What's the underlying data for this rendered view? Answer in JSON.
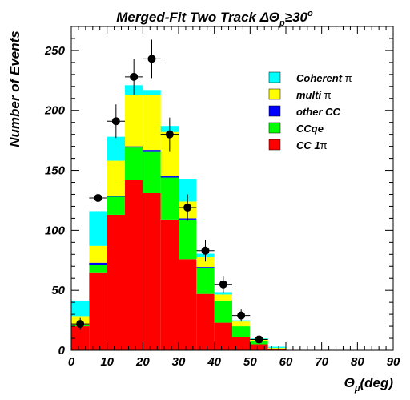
{
  "chart_data": {
    "type": "bar",
    "stacked": true,
    "title": "Merged-Fit Two Track ΔΘp≥30°",
    "title_parts": {
      "prefix": "Merged-Fit Two Track ΔΘ",
      "sub": "p",
      "rel": "≥30",
      "sup": "o"
    },
    "xlabel": "Θμ(deg)",
    "xlabel_parts": {
      "main": "Θ",
      "sub": "μ",
      "rest": "(deg)"
    },
    "ylabel": "Number of Events",
    "xlim": [
      0,
      90
    ],
    "ylim": [
      0,
      270
    ],
    "x_ticks": [
      0,
      10,
      20,
      30,
      40,
      50,
      60,
      70,
      80,
      90
    ],
    "y_ticks": [
      0,
      50,
      100,
      150,
      200,
      250
    ],
    "bin_edges": [
      0,
      5,
      10,
      15,
      20,
      25,
      30,
      35,
      40,
      45,
      50,
      55,
      60,
      65,
      70,
      75,
      80,
      85,
      90
    ],
    "series": [
      {
        "name": "CC 1π",
        "color": "#ff0000",
        "values": [
          20,
          65,
          113,
          142,
          131,
          109,
          76,
          47,
          23,
          11,
          5,
          1,
          0,
          0,
          0,
          0,
          0,
          0
        ]
      },
      {
        "name": "CCqe",
        "color": "#00ff00",
        "values": [
          1,
          6,
          15,
          27,
          35,
          35,
          33,
          22,
          18,
          9,
          3,
          0.5,
          0,
          0,
          0,
          0,
          0,
          0
        ]
      },
      {
        "name": "other CC",
        "color": "#0000ff",
        "values": [
          0.5,
          2,
          1,
          1,
          1,
          1,
          1,
          0.5,
          0.5,
          0,
          0,
          0,
          0,
          0,
          0,
          0,
          0,
          0
        ]
      },
      {
        "name": "multi π",
        "color": "#ffff00",
        "values": [
          7,
          14,
          29,
          43,
          46,
          37,
          14,
          8,
          5,
          4,
          1.5,
          0.5,
          0,
          0,
          0,
          0,
          0,
          0
        ]
      },
      {
        "name": "Coherent π",
        "color": "#00ffff",
        "values": [
          13,
          29,
          20,
          8,
          4,
          5,
          19,
          3,
          2,
          1,
          0.5,
          1,
          0,
          0,
          0,
          0,
          0,
          0
        ]
      }
    ],
    "data_points": {
      "x": [
        2.5,
        7.5,
        12.5,
        17.5,
        22.5,
        27.5,
        32.5,
        37.5,
        42.5,
        47.5,
        52.5
      ],
      "y": [
        22,
        127,
        191,
        228,
        243,
        180,
        119,
        83,
        55,
        29,
        9
      ],
      "yerr": [
        5,
        11,
        14,
        15,
        16,
        14,
        11,
        9,
        7,
        5,
        3
      ]
    },
    "legend": {
      "placement": "top-right",
      "entries": [
        {
          "label_main": "Coherent ",
          "label_greek": "π",
          "color": "#00ffff"
        },
        {
          "label_main": "multi ",
          "label_greek": "π",
          "color": "#ffff00"
        },
        {
          "label_main": "other CC",
          "label_greek": "",
          "color": "#0000ff"
        },
        {
          "label_main": "CCqe",
          "label_greek": "",
          "color": "#00ff00"
        },
        {
          "label_main": "CC 1",
          "label_greek": "π",
          "color": "#ff0000"
        }
      ]
    },
    "grid": false
  }
}
